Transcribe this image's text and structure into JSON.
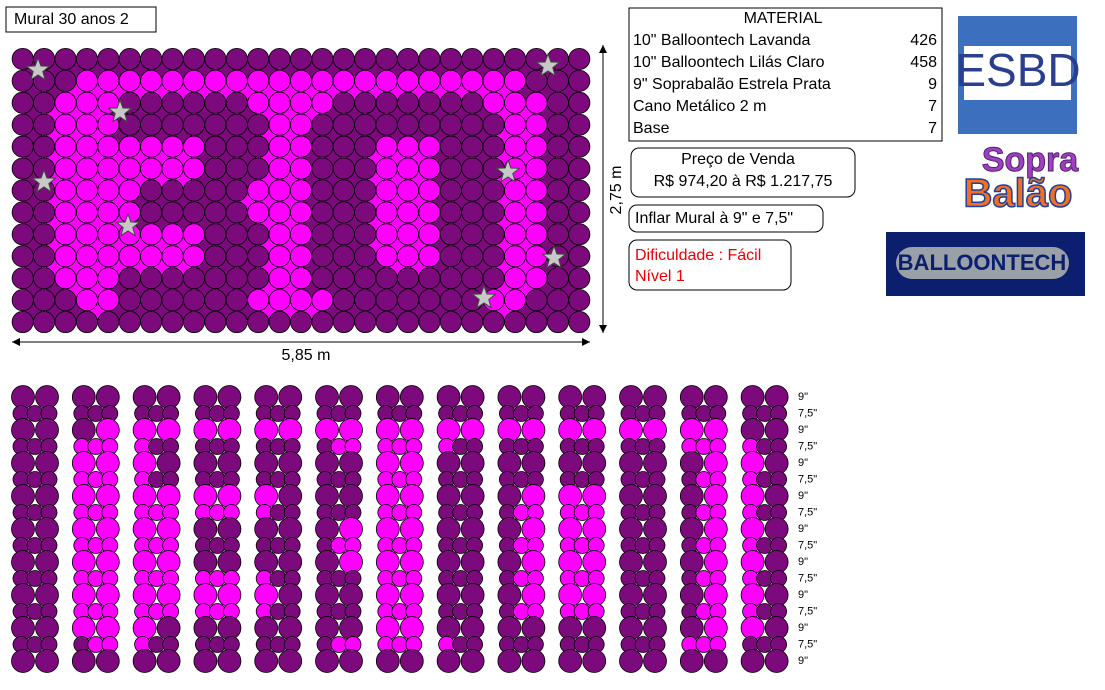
{
  "header": {
    "title": "Mural 30 anos 2"
  },
  "dimensions": {
    "width": "5,85 m",
    "height": "2,75 m"
  },
  "material": {
    "title": "MATERIAL",
    "rows": [
      {
        "name": "10\" Balloontech Lavanda",
        "qty": 426
      },
      {
        "name": "10\" Balloontech Lilás Claro",
        "qty": 458
      },
      {
        "name": "9\" Soprabalão Estrela Prata",
        "qty": 9
      },
      {
        "name": "Cano Metálico 2 m",
        "qty": 7
      },
      {
        "name": "Base",
        "qty": 7
      }
    ]
  },
  "price": {
    "label": "Preço de Venda",
    "range": "R$ 974,20 à R$ 1.217,75"
  },
  "inflate": "Inflar Mural à 9\" e 7,5\"",
  "difficulty": {
    "level": "Dificuldade : Fácil",
    "grade": "Nível 1"
  },
  "logos": {
    "esbd": "ESBD",
    "sopra": "Sopra",
    "balao": "Balão",
    "balloontech": "BALLOONTECH"
  },
  "sizes": [
    "9\"",
    "7,5\"",
    "9\"",
    "7,5\"",
    "9\"",
    "7,5\"",
    "9\"",
    "7,5\"",
    "9\"",
    "7,5\"",
    "9\"",
    "7,5\"",
    "9\"",
    "7,5\"",
    "9\"",
    "7,5\"",
    "9\""
  ]
}
